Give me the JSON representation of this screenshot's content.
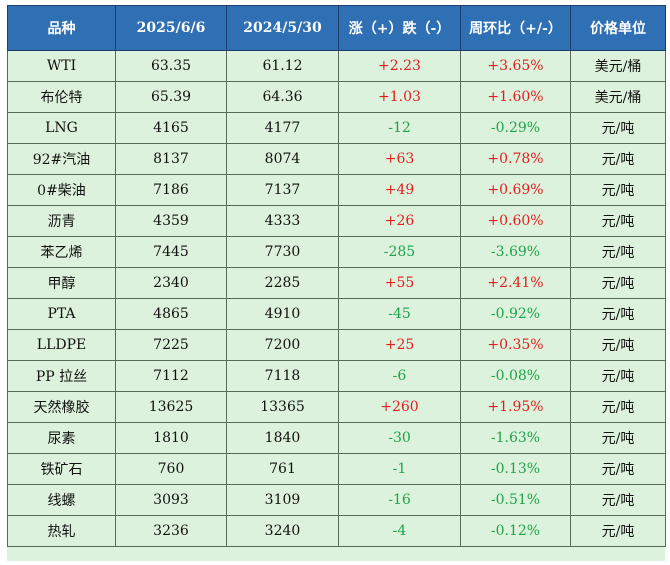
{
  "header": {
    "col_name": "品种",
    "col_date1": "2025/6/6",
    "col_date2": "2024/5/30",
    "col_change": "涨（+）跌（-）",
    "col_ratio": "周环比（+/-）",
    "col_unit": "价格单位"
  },
  "colors": {
    "header_bg": "#2f6fb3",
    "table_bg": "#ddf2dd",
    "up": "#e02020",
    "down": "#1fa34a"
  },
  "rows": [
    {
      "name": "WTI",
      "v1": "63.35",
      "v2": "61.12",
      "change": "+2.23",
      "ratio": "+3.65%",
      "unit": "美元/桶"
    },
    {
      "name": "布伦特",
      "v1": "65.39",
      "v2": "64.36",
      "change": "+1.03",
      "ratio": "+1.60%",
      "unit": "美元/桶"
    },
    {
      "name": "LNG",
      "v1": "4165",
      "v2": "4177",
      "change": "-12",
      "ratio": "-0.29%",
      "unit": "元/吨"
    },
    {
      "name": "92#汽油",
      "v1": "8137",
      "v2": "8074",
      "change": "+63",
      "ratio": "+0.78%",
      "unit": "元/吨"
    },
    {
      "name": "0#柴油",
      "v1": "7186",
      "v2": "7137",
      "change": "+49",
      "ratio": "+0.69%",
      "unit": "元/吨"
    },
    {
      "name": "沥青",
      "v1": "4359",
      "v2": "4333",
      "change": "+26",
      "ratio": "+0.60%",
      "unit": "元/吨"
    },
    {
      "name": "苯乙烯",
      "v1": "7445",
      "v2": "7730",
      "change": "-285",
      "ratio": "-3.69%",
      "unit": "元/吨"
    },
    {
      "name": "甲醇",
      "v1": "2340",
      "v2": "2285",
      "change": "+55",
      "ratio": "+2.41%",
      "unit": "元/吨"
    },
    {
      "name": "PTA",
      "v1": "4865",
      "v2": "4910",
      "change": "-45",
      "ratio": "-0.92%",
      "unit": "元/吨"
    },
    {
      "name": "LLDPE",
      "v1": "7225",
      "v2": "7200",
      "change": "+25",
      "ratio": "+0.35%",
      "unit": "元/吨"
    },
    {
      "name": "PP 拉丝",
      "v1": "7112",
      "v2": "7118",
      "change": "-6",
      "ratio": "-0.08%",
      "unit": "元/吨"
    },
    {
      "name": "天然橡胶",
      "v1": "13625",
      "v2": "13365",
      "change": "+260",
      "ratio": "+1.95%",
      "unit": "元/吨"
    },
    {
      "name": "尿素",
      "v1": "1810",
      "v2": "1840",
      "change": "-30",
      "ratio": "-1.63%",
      "unit": "元/吨"
    },
    {
      "name": "铁矿石",
      "v1": "760",
      "v2": "761",
      "change": "-1",
      "ratio": "-0.13%",
      "unit": "元/吨"
    },
    {
      "name": "线螺",
      "v1": "3093",
      "v2": "3109",
      "change": "-16",
      "ratio": "-0.51%",
      "unit": "元/吨"
    },
    {
      "name": "热轧",
      "v1": "3236",
      "v2": "3240",
      "change": "-4",
      "ratio": "-0.12%",
      "unit": "元/吨"
    }
  ]
}
